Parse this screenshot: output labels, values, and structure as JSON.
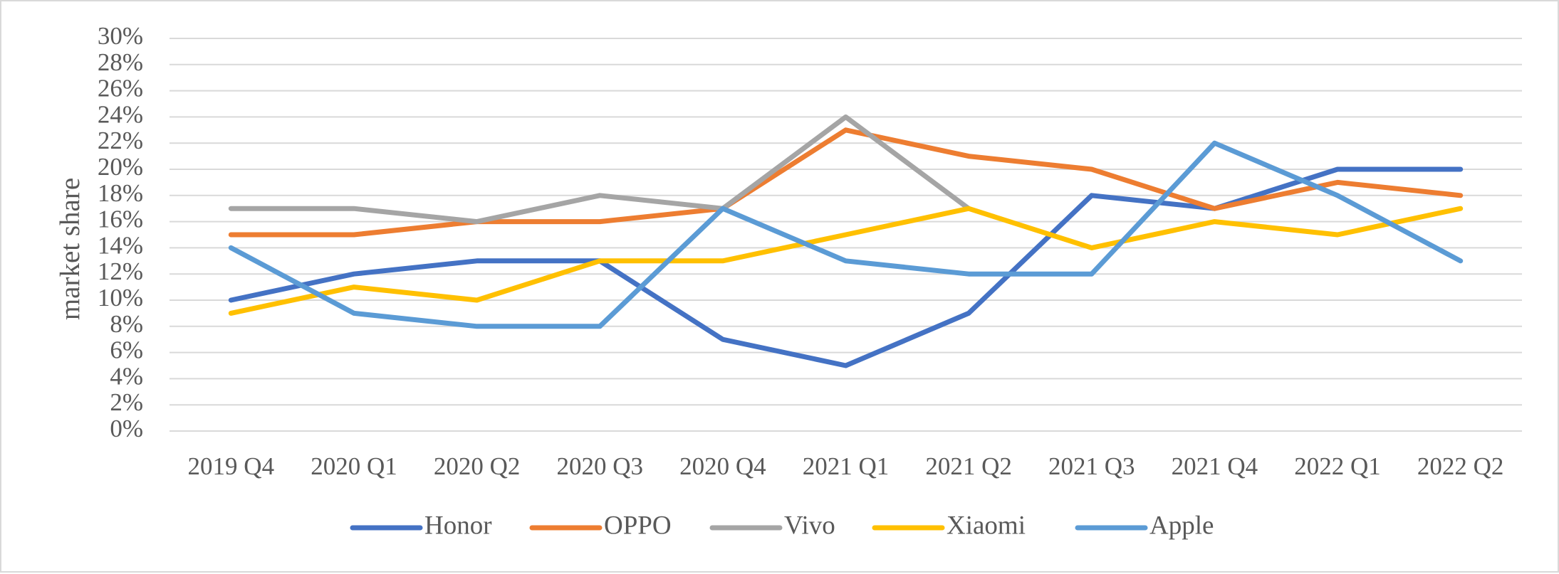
{
  "chart_data": {
    "type": "line",
    "title": "",
    "xlabel": "",
    "ylabel": "market share",
    "categories": [
      "2019 Q4",
      "2020 Q1",
      "2020 Q2",
      "2020 Q3",
      "2020 Q4",
      "2021 Q1",
      "2021 Q2",
      "2021 Q3",
      "2021 Q4",
      "2022 Q1",
      "2022 Q2"
    ],
    "ylim": [
      0,
      30
    ],
    "ytick_step": 2,
    "ytick_suffix": "%",
    "grid": true,
    "legend_position": "bottom",
    "series": [
      {
        "name": "Honor",
        "color": "#4472C4",
        "values": [
          10,
          12,
          13,
          13,
          7,
          5,
          9,
          18,
          17,
          20,
          20
        ]
      },
      {
        "name": "OPPO",
        "color": "#ED7D31",
        "values": [
          15,
          15,
          16,
          16,
          17,
          23,
          21,
          20,
          17,
          19,
          18
        ]
      },
      {
        "name": "Vivo",
        "color": "#A5A5A5",
        "values": [
          17,
          17,
          16,
          18,
          17,
          24,
          17,
          null,
          null,
          null,
          null
        ]
      },
      {
        "name": "Xiaomi",
        "color": "#FFC000",
        "values": [
          9,
          11,
          10,
          13,
          13,
          15,
          17,
          14,
          16,
          15,
          17
        ]
      },
      {
        "name": "Apple",
        "color": "#5B9BD5",
        "values": [
          14,
          9,
          8,
          8,
          17,
          13,
          12,
          12,
          22,
          18,
          13
        ]
      }
    ]
  }
}
